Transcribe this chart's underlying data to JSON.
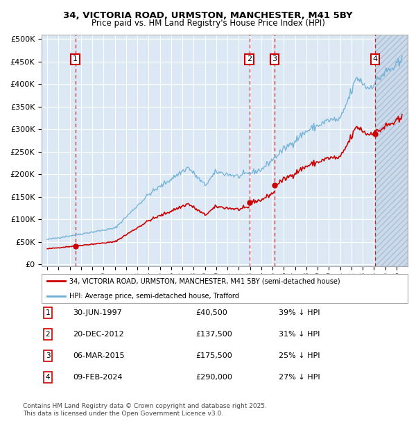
{
  "title_line1": "34, VICTORIA ROAD, URMSTON, MANCHESTER, M41 5BY",
  "title_line2": "Price paid vs. HM Land Registry's House Price Index (HPI)",
  "ylabel_ticks": [
    "£0",
    "£50K",
    "£100K",
    "£150K",
    "£200K",
    "£250K",
    "£300K",
    "£350K",
    "£400K",
    "£450K",
    "£500K"
  ],
  "ytick_values": [
    0,
    50000,
    100000,
    150000,
    200000,
    250000,
    300000,
    350000,
    400000,
    450000,
    500000
  ],
  "xlim": [
    1994.5,
    2027.0
  ],
  "ylim": [
    -5000,
    510000
  ],
  "legend_line1_label": "34, VICTORIA ROAD, URMSTON, MANCHESTER, M41 5BY (semi-detached house)",
  "legend_line2_label": "HPI: Average price, semi-detached house, Trafford",
  "transactions": [
    {
      "num": 1,
      "date": "30-JUN-1997",
      "price": 40500,
      "pct": "39%",
      "year": 1997.5
    },
    {
      "num": 2,
      "date": "20-DEC-2012",
      "price": 137500,
      "pct": "31%",
      "year": 2012.95
    },
    {
      "num": 3,
      "date": "06-MAR-2015",
      "price": 175500,
      "pct": "25%",
      "year": 2015.17
    },
    {
      "num": 4,
      "date": "09-FEB-2024",
      "price": 290000,
      "pct": "27%",
      "year": 2024.1
    }
  ],
  "footer_line1": "Contains HM Land Registry data © Crown copyright and database right 2025.",
  "footer_line2": "This data is licensed under the Open Government Licence v3.0.",
  "hpi_color": "#6baed6",
  "price_color": "#cc0000",
  "bg_color": "#dce9f5",
  "grid_color": "#ffffff",
  "annotation_box_color": "#cc0000",
  "hatch_color": "#c8d8ea"
}
